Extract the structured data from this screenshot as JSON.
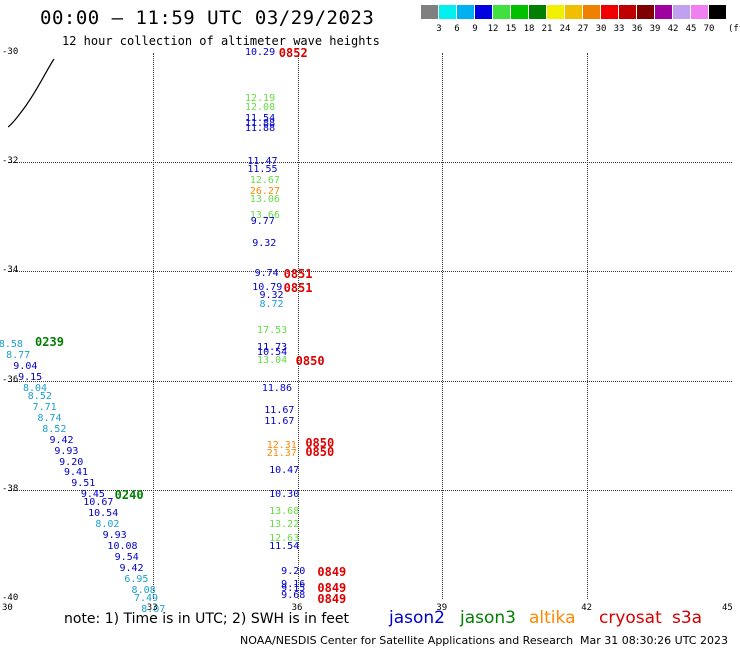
{
  "title": "00:00 – 11:59 UTC 03/29/2023",
  "subtitle": "12 hour collection of altimeter wave heights",
  "colorbar": {
    "colors": [
      "#808080",
      "#00f0f0",
      "#00b0f0",
      "#0000e0",
      "#40e040",
      "#00c000",
      "#008000",
      "#f0f000",
      "#f0c000",
      "#f08000",
      "#f00000",
      "#c00000",
      "#800000",
      "#a000a0",
      "#c0a0f0",
      "#f080f0",
      "#000000"
    ],
    "ticks": [
      "3",
      "6",
      "9",
      "12",
      "15",
      "18",
      "21",
      "24",
      "27",
      "30",
      "33",
      "36",
      "39",
      "42",
      "45",
      "70"
    ],
    "unit": "(ft)"
  },
  "axes": {
    "x_ticks": [
      "30",
      "33",
      "36",
      "39",
      "42",
      "45"
    ],
    "y_ticks": [
      "-30",
      "-32",
      "-34",
      "-36",
      "-38",
      "-40"
    ],
    "xlim": [
      30,
      45
    ],
    "ylim": [
      -40,
      -30
    ],
    "grid": true
  },
  "track_colors": {
    "jason2": "#0000cc",
    "jason3": "#008000",
    "altika": "#ff8800",
    "cryosat": "#dd0000",
    "s3a": "#cc0000",
    "cyan": "#1aa0cc",
    "lime": "#66dd44"
  },
  "swh_points": [
    {
      "v": "10.29",
      "lon": 35.2,
      "lat": -30.0,
      "c": "jason2"
    },
    {
      "v": "12.19",
      "lon": 35.2,
      "lat": -30.85,
      "c": "lime"
    },
    {
      "v": "12.08",
      "lon": 35.2,
      "lat": -31.0,
      "c": "lime"
    },
    {
      "v": "11.54",
      "lon": 35.2,
      "lat": -31.2,
      "c": "jason2"
    },
    {
      "v": "11.88",
      "lon": 35.2,
      "lat": -31.3,
      "c": "jason2"
    },
    {
      "v": "11.88",
      "lon": 35.2,
      "lat": -31.4,
      "c": "jason2"
    },
    {
      "v": "11.47",
      "lon": 35.25,
      "lat": -32.0,
      "c": "jason2"
    },
    {
      "v": "11.55",
      "lon": 35.25,
      "lat": -32.15,
      "c": "jason2"
    },
    {
      "v": "12.67",
      "lon": 35.3,
      "lat": -32.35,
      "c": "lime"
    },
    {
      "v": "26.27",
      "lon": 35.3,
      "lat": -32.55,
      "c": "altika"
    },
    {
      "v": "13.06",
      "lon": 35.3,
      "lat": -32.7,
      "c": "lime"
    },
    {
      "v": "13.66",
      "lon": 35.3,
      "lat": -32.98,
      "c": "lime"
    },
    {
      "v": "9.77",
      "lon": 35.32,
      "lat": -33.1,
      "c": "jason2"
    },
    {
      "v": "9.32",
      "lon": 35.35,
      "lat": -33.5,
      "c": "jason2"
    },
    {
      "v": "9.74",
      "lon": 35.4,
      "lat": -34.05,
      "c": "jason2"
    },
    {
      "v": "10.79",
      "lon": 35.35,
      "lat": -34.3,
      "c": "jason2"
    },
    {
      "v": "9.32",
      "lon": 35.5,
      "lat": -34.45,
      "c": "jason2"
    },
    {
      "v": "8.72",
      "lon": 35.5,
      "lat": -34.62,
      "c": "cyan"
    },
    {
      "v": "17.53",
      "lon": 35.45,
      "lat": -35.1,
      "c": "lime"
    },
    {
      "v": "11.73",
      "lon": 35.45,
      "lat": -35.4,
      "c": "jason2"
    },
    {
      "v": "10.54",
      "lon": 35.45,
      "lat": -35.5,
      "c": "jason2"
    },
    {
      "v": "13.04",
      "lon": 35.45,
      "lat": -35.65,
      "c": "lime"
    },
    {
      "v": "11.86",
      "lon": 35.55,
      "lat": -36.15,
      "c": "jason2"
    },
    {
      "v": "11.67",
      "lon": 35.6,
      "lat": -36.55,
      "c": "jason2"
    },
    {
      "v": "11.67",
      "lon": 35.6,
      "lat": -36.75,
      "c": "jason2"
    },
    {
      "v": "12.31",
      "lon": 35.65,
      "lat": -37.2,
      "c": "altika"
    },
    {
      "v": "21.37",
      "lon": 35.65,
      "lat": -37.35,
      "c": "altika"
    },
    {
      "v": "10.47",
      "lon": 35.7,
      "lat": -37.65,
      "c": "jason2"
    },
    {
      "v": "10.30",
      "lon": 35.7,
      "lat": -38.1,
      "c": "jason2"
    },
    {
      "v": "13.68",
      "lon": 35.7,
      "lat": -38.4,
      "c": "lime"
    },
    {
      "v": "13.22",
      "lon": 35.7,
      "lat": -38.65,
      "c": "lime"
    },
    {
      "v": "12.63",
      "lon": 35.7,
      "lat": -38.9,
      "c": "lime"
    },
    {
      "v": "11.54",
      "lon": 35.7,
      "lat": -39.05,
      "c": "jason2"
    },
    {
      "v": "9.20",
      "lon": 35.95,
      "lat": -39.5,
      "c": "jason2"
    },
    {
      "v": "9.16",
      "lon": 35.95,
      "lat": -39.75,
      "c": "jason2"
    },
    {
      "v": "9.15",
      "lon": 35.95,
      "lat": -39.82,
      "c": "jason2"
    },
    {
      "v": "9.68",
      "lon": 35.95,
      "lat": -39.95,
      "c": "jason2"
    },
    {
      "v": "8.58",
      "lon": 30.1,
      "lat": -35.35,
      "c": "cyan"
    },
    {
      "v": "8.77",
      "lon": 30.25,
      "lat": -35.55,
      "c": "cyan"
    },
    {
      "v": "9.04",
      "lon": 30.4,
      "lat": -35.75,
      "c": "jason2"
    },
    {
      "v": "9.15",
      "lon": 30.5,
      "lat": -35.95,
      "c": "jason2"
    },
    {
      "v": "8.04",
      "lon": 30.6,
      "lat": -36.15,
      "c": "cyan"
    },
    {
      "v": "8.52",
      "lon": 30.7,
      "lat": -36.3,
      "c": "cyan"
    },
    {
      "v": "7.71",
      "lon": 30.8,
      "lat": -36.5,
      "c": "cyan"
    },
    {
      "v": "8.74",
      "lon": 30.9,
      "lat": -36.7,
      "c": "cyan"
    },
    {
      "v": "8.52",
      "lon": 31.0,
      "lat": -36.9,
      "c": "cyan"
    },
    {
      "v": "9.42",
      "lon": 31.15,
      "lat": -37.1,
      "c": "jason2"
    },
    {
      "v": "9.93",
      "lon": 31.25,
      "lat": -37.3,
      "c": "jason2"
    },
    {
      "v": "9.20",
      "lon": 31.35,
      "lat": -37.5,
      "c": "jason2"
    },
    {
      "v": "9.41",
      "lon": 31.45,
      "lat": -37.7,
      "c": "jason2"
    },
    {
      "v": "9.51",
      "lon": 31.6,
      "lat": -37.9,
      "c": "jason2"
    },
    {
      "v": "9.45",
      "lon": 31.8,
      "lat": -38.1,
      "c": "jason2"
    },
    {
      "v": "10.67",
      "lon": 31.85,
      "lat": -38.25,
      "c": "jason2"
    },
    {
      "v": "10.54",
      "lon": 31.95,
      "lat": -38.45,
      "c": "jason2"
    },
    {
      "v": "8.02",
      "lon": 32.1,
      "lat": -38.65,
      "c": "cyan"
    },
    {
      "v": "9.93",
      "lon": 32.25,
      "lat": -38.85,
      "c": "jason2"
    },
    {
      "v": "10.08",
      "lon": 32.35,
      "lat": -39.05,
      "c": "jason2"
    },
    {
      "v": "9.54",
      "lon": 32.5,
      "lat": -39.25,
      "c": "jason2"
    },
    {
      "v": "9.42",
      "lon": 32.6,
      "lat": -39.45,
      "c": "jason2"
    },
    {
      "v": "6.95",
      "lon": 32.7,
      "lat": -39.65,
      "c": "cyan"
    },
    {
      "v": "8.08",
      "lon": 32.85,
      "lat": -39.85,
      "c": "cyan"
    },
    {
      "v": "7.49",
      "lon": 32.9,
      "lat": -40.0,
      "c": "cyan"
    },
    {
      "v": "8.07",
      "lon": 33.05,
      "lat": -40.2,
      "c": "cyan"
    }
  ],
  "time_labels": [
    {
      "t": "0852",
      "lon": 35.9,
      "lat": -30.0,
      "c": "cryosat"
    },
    {
      "t": "0851",
      "lon": 36.0,
      "lat": -34.05,
      "c": "cryosat"
    },
    {
      "t": "0851",
      "lon": 36.0,
      "lat": -34.3,
      "c": "cryosat"
    },
    {
      "t": "0850",
      "lon": 36.25,
      "lat": -35.65,
      "c": "cryosat"
    },
    {
      "t": "0850",
      "lon": 36.45,
      "lat": -37.15,
      "c": "cryosat"
    },
    {
      "t": "0850",
      "lon": 36.45,
      "lat": -37.3,
      "c": "cryosat"
    },
    {
      "t": "0849",
      "lon": 36.7,
      "lat": -39.5,
      "c": "cryosat"
    },
    {
      "t": "0849",
      "lon": 36.7,
      "lat": -39.8,
      "c": "cryosat"
    },
    {
      "t": "0849",
      "lon": 36.7,
      "lat": -40.0,
      "c": "cryosat"
    },
    {
      "t": "0239",
      "lon": 30.85,
      "lat": -35.3,
      "c": "jason3"
    },
    {
      "t": "0240",
      "lon": 32.5,
      "lat": -38.1,
      "c": "jason3"
    }
  ],
  "note": "note: 1) Time is in UTC; 2) SWH is in feet",
  "legend": [
    {
      "label": "jason2",
      "color": "#0000cc"
    },
    {
      "label": "jason3",
      "color": "#008000"
    },
    {
      "label": "altika",
      "color": "#ff8800"
    },
    {
      "label": "cryosat",
      "color": "#dd0000"
    },
    {
      "label": "s3a",
      "color": "#cc0000"
    }
  ],
  "credit": "NOAA/NESDIS Center for Satellite Applications and Research",
  "stamp": "Mar 31 08:30:26 UTC 2023"
}
